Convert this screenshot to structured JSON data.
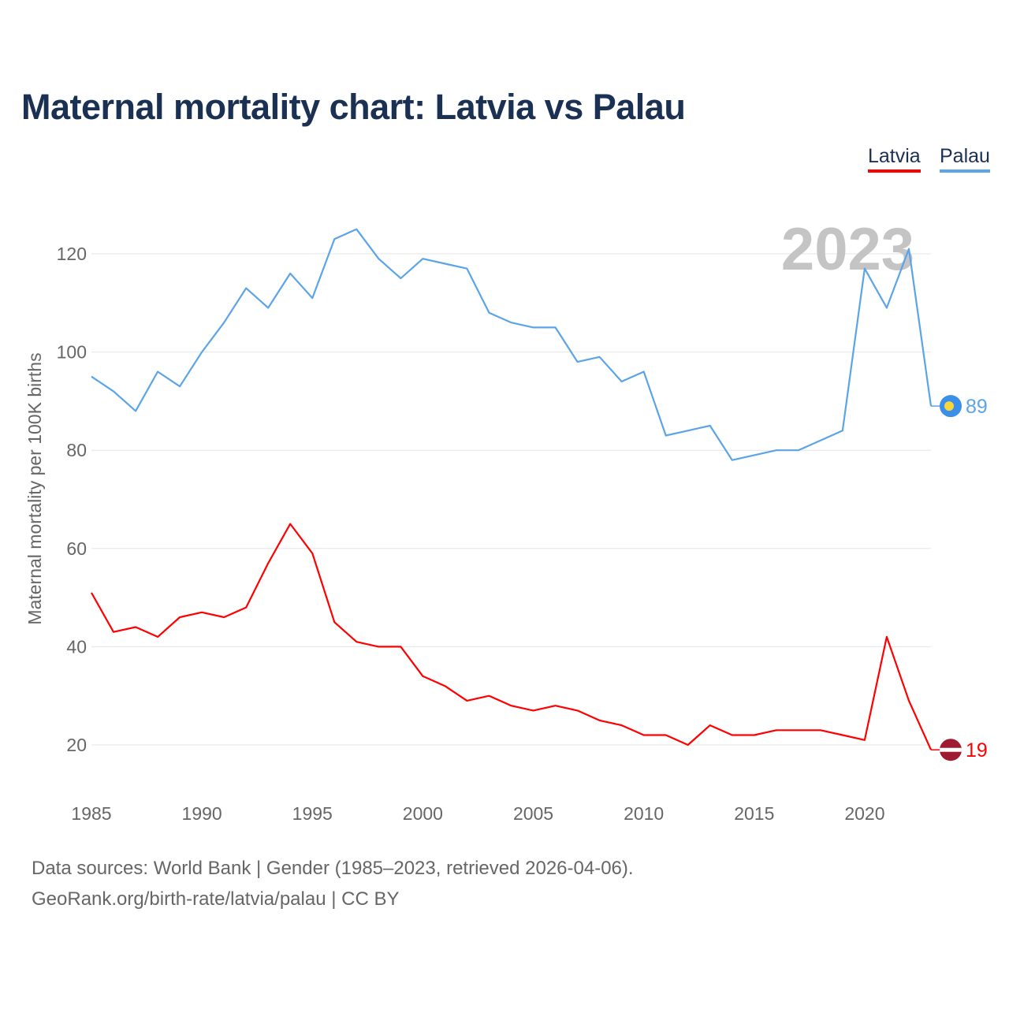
{
  "chart_data": {
    "type": "line",
    "title": "Maternal mortality chart: Latvia vs Palau",
    "xlabel": "",
    "ylabel": "Maternal mortality per 100K births",
    "xlim": [
      1985,
      2023
    ],
    "ylim": [
      10,
      135
    ],
    "yticks": [
      20,
      40,
      60,
      80,
      100,
      120
    ],
    "xticks": [
      1985,
      1990,
      1995,
      2000,
      2005,
      2010,
      2015,
      2020
    ],
    "grid": true,
    "legend_position": "top-right",
    "year_watermark": "2023",
    "x": [
      1985,
      1986,
      1987,
      1988,
      1989,
      1990,
      1991,
      1992,
      1993,
      1994,
      1995,
      1996,
      1997,
      1998,
      1999,
      2000,
      2001,
      2002,
      2003,
      2004,
      2005,
      2006,
      2007,
      2008,
      2009,
      2010,
      2011,
      2012,
      2013,
      2014,
      2015,
      2016,
      2017,
      2018,
      2019,
      2020,
      2021,
      2022,
      2023
    ],
    "series": [
      {
        "name": "Latvia",
        "color": "#ff0000",
        "last_label": "19",
        "values": [
          51,
          43,
          44,
          42,
          46,
          47,
          46,
          48,
          57,
          65,
          59,
          45,
          41,
          40,
          40,
          34,
          32,
          29,
          30,
          28,
          27,
          28,
          27,
          25,
          24,
          22,
          22,
          20,
          24,
          22,
          22,
          23,
          23,
          23,
          22,
          21,
          42,
          29,
          19
        ]
      },
      {
        "name": "Palau",
        "color": "#5ba4e8",
        "last_label": "89",
        "values": [
          95,
          92,
          88,
          96,
          93,
          100,
          106,
          113,
          109,
          116,
          111,
          123,
          125,
          119,
          115,
          119,
          118,
          117,
          108,
          106,
          105,
          105,
          98,
          99,
          94,
          96,
          83,
          84,
          85,
          78,
          79,
          80,
          80,
          82,
          84,
          117,
          109,
          121,
          89
        ]
      }
    ]
  },
  "footer": {
    "line1": "Data sources: World Bank | Gender (1985–2023, retrieved 2026-04-06).",
    "line2": "GeoRank.org/birth-rate/latvia/palau | CC BY"
  }
}
